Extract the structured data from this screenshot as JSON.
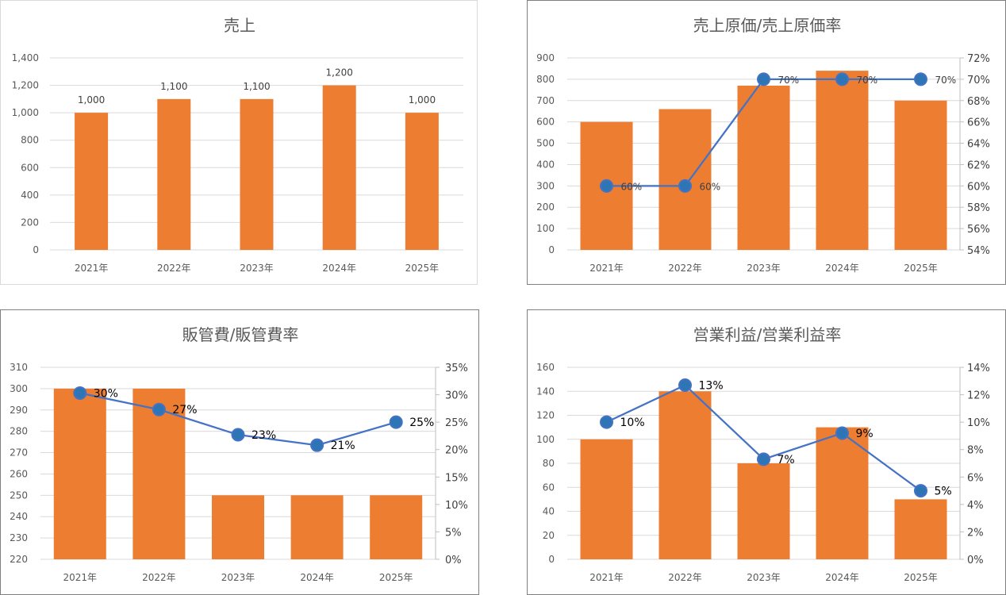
{
  "colors": {
    "bar": "#ed7d31",
    "line": "#4472c4",
    "marker": "#2e75b6",
    "grid": "#d9d9d9",
    "text": "#595959"
  },
  "chart_data": [
    {
      "type": "bar",
      "title": "売上",
      "categories": [
        "2021年",
        "2022年",
        "2023年",
        "2024年",
        "2025年"
      ],
      "values": [
        1000,
        1100,
        1100,
        1200,
        1000
      ],
      "value_labels": [
        "1,000",
        "1,100",
        "1,100",
        "1,200",
        "1,000"
      ],
      "ylim": [
        0,
        1400
      ],
      "y_ticks": [
        "0",
        "200",
        "400",
        "600",
        "800",
        "1,000",
        "1,200",
        "1,400"
      ]
    },
    {
      "type": "bar",
      "title": "売上原価/売上原価率",
      "categories": [
        "2021年",
        "2022年",
        "2023年",
        "2024年",
        "2025年"
      ],
      "values": [
        600,
        660,
        770,
        840,
        700
      ],
      "ylim": [
        0,
        900
      ],
      "y_ticks": [
        "0",
        "100",
        "200",
        "300",
        "400",
        "500",
        "600",
        "700",
        "800",
        "900"
      ],
      "rate": [
        60,
        60,
        70,
        70,
        70
      ],
      "rate_labels": [
        "60%",
        "60%",
        "70%",
        "70%",
        "70%"
      ],
      "y2lim": [
        54,
        72
      ],
      "y2_ticks": [
        "54%",
        "56%",
        "58%",
        "60%",
        "62%",
        "64%",
        "66%",
        "68%",
        "70%",
        "72%"
      ]
    },
    {
      "type": "bar",
      "title": "販管費/販管費率",
      "categories": [
        "2021年",
        "2022年",
        "2023年",
        "2024年",
        "2025年"
      ],
      "values": [
        300,
        300,
        250,
        250,
        250
      ],
      "ylim": [
        220,
        310
      ],
      "y_ticks": [
        "220",
        "230",
        "240",
        "250",
        "260",
        "270",
        "280",
        "290",
        "300",
        "310"
      ],
      "rate": [
        30.3,
        27.3,
        22.7,
        20.8,
        25.0
      ],
      "rate_labels": [
        "30%",
        "27%",
        "23%",
        "21%",
        "25%"
      ],
      "y2lim": [
        0,
        35
      ],
      "y2_ticks": [
        "0%",
        "5%",
        "10%",
        "15%",
        "20%",
        "25%",
        "30%",
        "35%"
      ]
    },
    {
      "type": "bar",
      "title": "営業利益/営業利益率",
      "categories": [
        "2021年",
        "2022年",
        "2023年",
        "2024年",
        "2025年"
      ],
      "values": [
        100,
        140,
        80,
        110,
        50
      ],
      "ylim": [
        0,
        160
      ],
      "y_ticks": [
        "0",
        "20",
        "40",
        "60",
        "80",
        "100",
        "120",
        "140",
        "160"
      ],
      "rate": [
        10.0,
        12.7,
        7.3,
        9.2,
        5.0
      ],
      "rate_labels": [
        "10%",
        "13%",
        "7%",
        "9%",
        "5%"
      ],
      "y2lim": [
        0,
        14
      ],
      "y2_ticks": [
        "0%",
        "2%",
        "4%",
        "6%",
        "8%",
        "10%",
        "12%",
        "14%"
      ]
    }
  ]
}
